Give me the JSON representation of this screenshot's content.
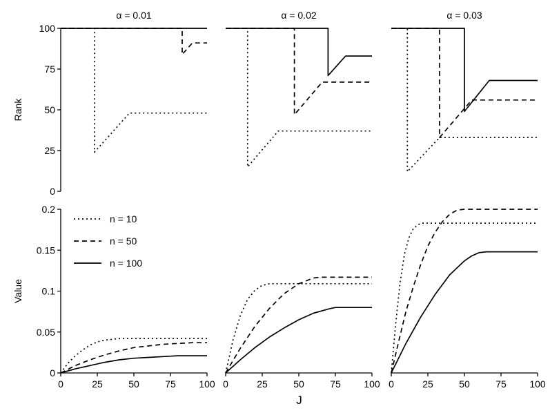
{
  "chart_data": {
    "type": "line",
    "xlabel": "J",
    "x_ticks": [
      0,
      25,
      50,
      75,
      100
    ],
    "xlim": [
      0,
      100
    ],
    "legend": {
      "placement": "top-left of bottom-left panel",
      "entries": [
        {
          "label": "n = 10",
          "style": "dotted"
        },
        {
          "label": "n = 50",
          "style": "dashed"
        },
        {
          "label": "n = 100",
          "style": "solid"
        }
      ]
    },
    "panel_titles": [
      "α = 0.01",
      "α = 0.02",
      "α = 0.03"
    ],
    "rows": [
      {
        "ylabel": "Rank",
        "ylim": [
          0,
          100
        ],
        "y_ticks": [
          0,
          25,
          50,
          75,
          100
        ],
        "y_tick_labels": [
          "0",
          "25",
          "50",
          "75",
          "100"
        ],
        "panels": [
          {
            "alpha": "0.01",
            "series": [
              {
                "name": "n = 10",
                "style": "dotted",
                "points": [
                  [
                    0,
                    100
                  ],
                  [
                    23,
                    100
                  ],
                  [
                    23,
                    24
                  ],
                  [
                    47,
                    48
                  ],
                  [
                    100,
                    48
                  ]
                ]
              },
              {
                "name": "n = 50",
                "style": "dashed",
                "points": [
                  [
                    0,
                    100
                  ],
                  [
                    83,
                    100
                  ],
                  [
                    83,
                    84
                  ],
                  [
                    90,
                    91
                  ],
                  [
                    100,
                    91
                  ]
                ]
              },
              {
                "name": "n = 100",
                "style": "solid",
                "points": [
                  [
                    0,
                    100
                  ],
                  [
                    100,
                    100
                  ]
                ]
              }
            ]
          },
          {
            "alpha": "0.02",
            "series": [
              {
                "name": "n = 10",
                "style": "dotted",
                "points": [
                  [
                    0,
                    100
                  ],
                  [
                    15,
                    100
                  ],
                  [
                    15,
                    15
                  ],
                  [
                    36,
                    37
                  ],
                  [
                    100,
                    37
                  ]
                ]
              },
              {
                "name": "n = 50",
                "style": "dashed",
                "points": [
                  [
                    0,
                    100
                  ],
                  [
                    47,
                    100
                  ],
                  [
                    47,
                    47
                  ],
                  [
                    66,
                    67
                  ],
                  [
                    100,
                    67
                  ]
                ]
              },
              {
                "name": "n = 100",
                "style": "solid",
                "points": [
                  [
                    0,
                    100
                  ],
                  [
                    70,
                    100
                  ],
                  [
                    70,
                    71
                  ],
                  [
                    82,
                    83
                  ],
                  [
                    100,
                    83
                  ]
                ]
              }
            ]
          },
          {
            "alpha": "0.03",
            "series": [
              {
                "name": "n = 10",
                "style": "dotted",
                "points": [
                  [
                    0,
                    100
                  ],
                  [
                    11,
                    100
                  ],
                  [
                    11,
                    12
                  ],
                  [
                    33,
                    33
                  ],
                  [
                    100,
                    33
                  ]
                ]
              },
              {
                "name": "n = 50",
                "style": "dashed",
                "points": [
                  [
                    0,
                    100
                  ],
                  [
                    33,
                    100
                  ],
                  [
                    33,
                    33
                  ],
                  [
                    55,
                    56
                  ],
                  [
                    100,
                    56
                  ]
                ]
              },
              {
                "name": "n = 100",
                "style": "solid",
                "points": [
                  [
                    0,
                    100
                  ],
                  [
                    50,
                    100
                  ],
                  [
                    50,
                    49
                  ],
                  [
                    67,
                    68
                  ],
                  [
                    100,
                    68
                  ]
                ]
              }
            ]
          }
        ]
      },
      {
        "ylabel": "Value",
        "ylim": [
          0,
          0.2
        ],
        "y_ticks": [
          0,
          0.05,
          0.1,
          0.15,
          0.2
        ],
        "y_tick_labels": [
          "0",
          "0.05",
          "0.1",
          "0.15",
          "0.2"
        ],
        "panels": [
          {
            "alpha": "0.01",
            "series": [
              {
                "name": "n = 10",
                "style": "dotted",
                "points": [
                  [
                    0,
                    0
                  ],
                  [
                    5,
                    0.012
                  ],
                  [
                    10,
                    0.021
                  ],
                  [
                    15,
                    0.028
                  ],
                  [
                    20,
                    0.034
                  ],
                  [
                    25,
                    0.038
                  ],
                  [
                    30,
                    0.04
                  ],
                  [
                    35,
                    0.041
                  ],
                  [
                    40,
                    0.042
                  ],
                  [
                    50,
                    0.042
                  ],
                  [
                    75,
                    0.042
                  ],
                  [
                    100,
                    0.042
                  ]
                ]
              },
              {
                "name": "n = 50",
                "style": "dashed",
                "points": [
                  [
                    0,
                    0
                  ],
                  [
                    10,
                    0.009
                  ],
                  [
                    20,
                    0.016
                  ],
                  [
                    30,
                    0.022
                  ],
                  [
                    40,
                    0.027
                  ],
                  [
                    50,
                    0.031
                  ],
                  [
                    60,
                    0.033
                  ],
                  [
                    70,
                    0.035
                  ],
                  [
                    80,
                    0.036
                  ],
                  [
                    90,
                    0.037
                  ],
                  [
                    100,
                    0.037
                  ]
                ]
              },
              {
                "name": "n = 100",
                "style": "solid",
                "points": [
                  [
                    0,
                    0
                  ],
                  [
                    10,
                    0.005
                  ],
                  [
                    20,
                    0.009
                  ],
                  [
                    30,
                    0.013
                  ],
                  [
                    40,
                    0.016
                  ],
                  [
                    50,
                    0.018
                  ],
                  [
                    60,
                    0.019
                  ],
                  [
                    70,
                    0.02
                  ],
                  [
                    80,
                    0.021
                  ],
                  [
                    90,
                    0.021
                  ],
                  [
                    100,
                    0.021
                  ]
                ]
              }
            ]
          },
          {
            "alpha": "0.02",
            "series": [
              {
                "name": "n = 10",
                "style": "dotted",
                "points": [
                  [
                    0,
                    0
                  ],
                  [
                    5,
                    0.04
                  ],
                  [
                    10,
                    0.07
                  ],
                  [
                    15,
                    0.09
                  ],
                  [
                    20,
                    0.101
                  ],
                  [
                    25,
                    0.107
                  ],
                  [
                    30,
                    0.109
                  ],
                  [
                    35,
                    0.109
                  ],
                  [
                    50,
                    0.109
                  ],
                  [
                    75,
                    0.109
                  ],
                  [
                    100,
                    0.109
                  ]
                ]
              },
              {
                "name": "n = 50",
                "style": "dashed",
                "points": [
                  [
                    0,
                    0
                  ],
                  [
                    10,
                    0.03
                  ],
                  [
                    20,
                    0.057
                  ],
                  [
                    30,
                    0.079
                  ],
                  [
                    40,
                    0.097
                  ],
                  [
                    50,
                    0.109
                  ],
                  [
                    60,
                    0.116
                  ],
                  [
                    65,
                    0.117
                  ],
                  [
                    75,
                    0.117
                  ],
                  [
                    100,
                    0.117
                  ]
                ]
              },
              {
                "name": "n = 100",
                "style": "solid",
                "points": [
                  [
                    0,
                    0
                  ],
                  [
                    10,
                    0.016
                  ],
                  [
                    20,
                    0.031
                  ],
                  [
                    30,
                    0.044
                  ],
                  [
                    40,
                    0.055
                  ],
                  [
                    50,
                    0.065
                  ],
                  [
                    60,
                    0.073
                  ],
                  [
                    70,
                    0.078
                  ],
                  [
                    75,
                    0.08
                  ],
                  [
                    100,
                    0.08
                  ]
                ]
              }
            ]
          },
          {
            "alpha": "0.03",
            "series": [
              {
                "name": "n = 10",
                "style": "dotted",
                "points": [
                  [
                    0,
                    0
                  ],
                  [
                    3,
                    0.06
                  ],
                  [
                    6,
                    0.11
                  ],
                  [
                    9,
                    0.145
                  ],
                  [
                    12,
                    0.165
                  ],
                  [
                    15,
                    0.176
                  ],
                  [
                    18,
                    0.181
                  ],
                  [
                    21,
                    0.183
                  ],
                  [
                    30,
                    0.183
                  ],
                  [
                    50,
                    0.183
                  ],
                  [
                    75,
                    0.183
                  ],
                  [
                    100,
                    0.183
                  ]
                ]
              },
              {
                "name": "n = 50",
                "style": "dashed",
                "points": [
                  [
                    0,
                    0
                  ],
                  [
                    5,
                    0.038
                  ],
                  [
                    10,
                    0.075
                  ],
                  [
                    15,
                    0.105
                  ],
                  [
                    20,
                    0.132
                  ],
                  [
                    25,
                    0.155
                  ],
                  [
                    30,
                    0.172
                  ],
                  [
                    35,
                    0.185
                  ],
                  [
                    40,
                    0.194
                  ],
                  [
                    45,
                    0.199
                  ],
                  [
                    50,
                    0.2
                  ],
                  [
                    75,
                    0.2
                  ],
                  [
                    100,
                    0.2
                  ]
                ]
              },
              {
                "name": "n = 100",
                "style": "solid",
                "points": [
                  [
                    0,
                    0
                  ],
                  [
                    10,
                    0.036
                  ],
                  [
                    20,
                    0.068
                  ],
                  [
                    30,
                    0.096
                  ],
                  [
                    40,
                    0.12
                  ],
                  [
                    50,
                    0.137
                  ],
                  [
                    55,
                    0.143
                  ],
                  [
                    60,
                    0.147
                  ],
                  [
                    65,
                    0.148
                  ],
                  [
                    75,
                    0.148
                  ],
                  [
                    100,
                    0.148
                  ]
                ]
              }
            ]
          }
        ]
      }
    ]
  }
}
